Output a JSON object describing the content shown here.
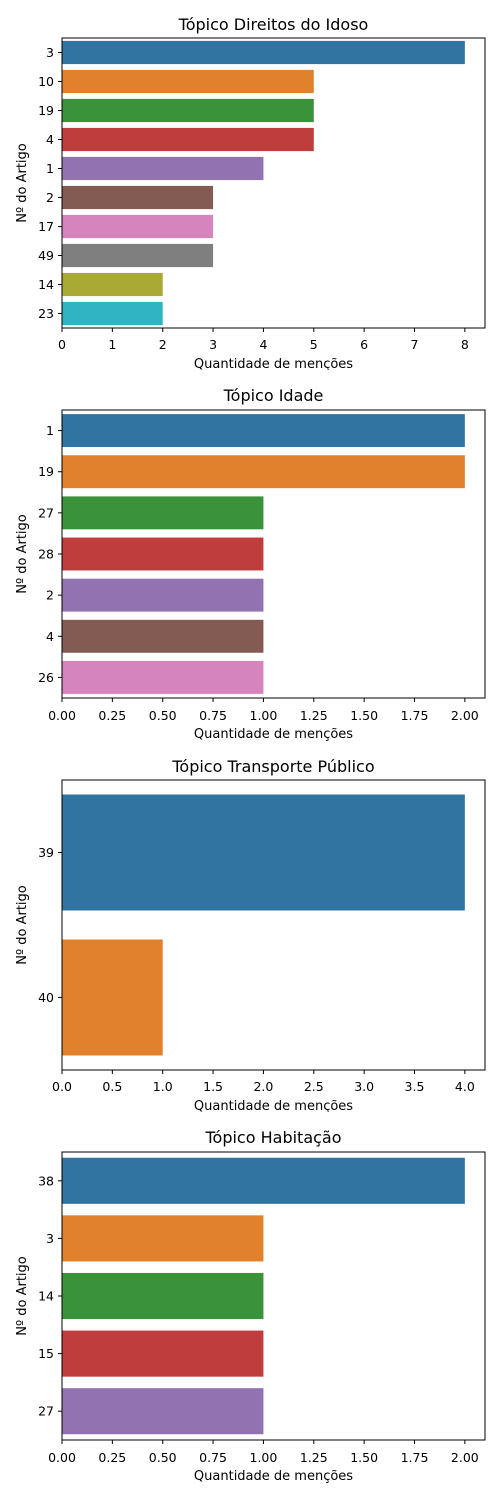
{
  "chart_data": [
    {
      "type": "bar",
      "orientation": "horizontal",
      "title": "Tópico Direitos do Idoso",
      "xlabel": "Quantidade de menções",
      "ylabel": "Nº do Artigo",
      "categories": [
        "3",
        "10",
        "19",
        "4",
        "1",
        "2",
        "17",
        "49",
        "14",
        "23"
      ],
      "values": [
        8,
        5,
        5,
        5,
        4,
        3,
        3,
        3,
        2,
        2
      ],
      "xlim": [
        0,
        8.4
      ],
      "xticks": [
        0,
        1,
        2,
        3,
        4,
        5,
        6,
        7,
        8
      ],
      "xtick_labels": [
        "0",
        "1",
        "2",
        "3",
        "4",
        "5",
        "6",
        "7",
        "8"
      ],
      "colors": [
        "#3274a1",
        "#e1812c",
        "#3a923a",
        "#c03d3e",
        "#9372b2",
        "#845b53",
        "#d684bd",
        "#7f7f7f",
        "#a9aa35",
        "#2eb4c2"
      ],
      "grid": false,
      "legend": "none"
    },
    {
      "type": "bar",
      "orientation": "horizontal",
      "title": "Tópico Idade",
      "xlabel": "Quantidade de menções",
      "ylabel": "Nº do Artigo",
      "categories": [
        "1",
        "19",
        "27",
        "28",
        "2",
        "4",
        "26"
      ],
      "values": [
        2,
        2,
        1,
        1,
        1,
        1,
        1
      ],
      "xlim": [
        0,
        2.1
      ],
      "xticks": [
        0,
        0.25,
        0.5,
        0.75,
        1.0,
        1.25,
        1.5,
        1.75,
        2.0
      ],
      "xtick_labels": [
        "0.00",
        "0.25",
        "0.50",
        "0.75",
        "1.00",
        "1.25",
        "1.50",
        "1.75",
        "2.00"
      ],
      "colors": [
        "#3274a1",
        "#e1812c",
        "#3a923a",
        "#c03d3e",
        "#9372b2",
        "#845b53",
        "#d684bd"
      ],
      "grid": false,
      "legend": "none"
    },
    {
      "type": "bar",
      "orientation": "horizontal",
      "title": "Tópico Transporte Público",
      "xlabel": "Quantidade de menções",
      "ylabel": "Nº do Artigo",
      "categories": [
        "39",
        "40"
      ],
      "values": [
        4,
        1
      ],
      "xlim": [
        0,
        4.2
      ],
      "xticks": [
        0,
        0.5,
        1.0,
        1.5,
        2.0,
        2.5,
        3.0,
        3.5,
        4.0
      ],
      "xtick_labels": [
        "0.0",
        "0.5",
        "1.0",
        "1.5",
        "2.0",
        "2.5",
        "3.0",
        "3.5",
        "4.0"
      ],
      "colors": [
        "#3274a1",
        "#e1812c"
      ],
      "grid": false,
      "legend": "none"
    },
    {
      "type": "bar",
      "orientation": "horizontal",
      "title": "Tópico Habitação",
      "xlabel": "Quantidade de menções",
      "ylabel": "Nº do Artigo",
      "categories": [
        "38",
        "3",
        "14",
        "15",
        "27"
      ],
      "values": [
        2,
        1,
        1,
        1,
        1
      ],
      "xlim": [
        0,
        2.1
      ],
      "xticks": [
        0,
        0.25,
        0.5,
        0.75,
        1.0,
        1.25,
        1.5,
        1.75,
        2.0
      ],
      "xtick_labels": [
        "0.00",
        "0.25",
        "0.50",
        "0.75",
        "1.00",
        "1.25",
        "1.50",
        "1.75",
        "2.00"
      ],
      "colors": [
        "#3274a1",
        "#e1812c",
        "#3a923a",
        "#c03d3e",
        "#9372b2"
      ],
      "grid": false,
      "legend": "none"
    }
  ]
}
